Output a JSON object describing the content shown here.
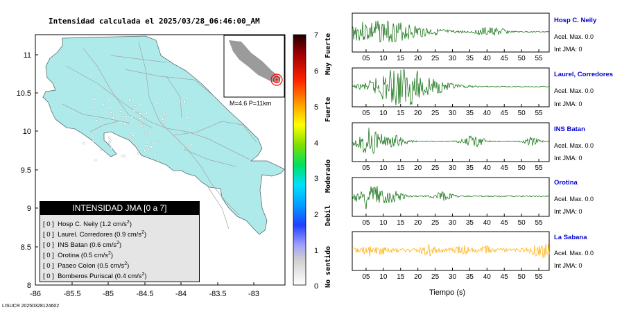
{
  "header": {
    "title": "Intensidad calculada el 2025/03/28_06:46:00_AM"
  },
  "footer": {
    "id": "LISUCR 20250328124602"
  },
  "map": {
    "inset_label": "M=4.6 P=11km",
    "yaxis_ticks": [
      "11",
      "10.5",
      "10",
      "9.5",
      "9",
      "8.5",
      "8"
    ],
    "xaxis_ticks": [
      "-86",
      "-85.5",
      "-85",
      "-84.5",
      "-84",
      "-83.5",
      "-83"
    ],
    "land_color": "#aeeaea"
  },
  "legend": {
    "title": "INTENSIDAD JMA [0 a 7]",
    "rows": [
      {
        "bracket": "[ 0 ]",
        "text": "Hosp C. Neily (1.2 cm/s",
        "unit_sup": "2",
        "close": ")"
      },
      {
        "bracket": "[ 0 ]",
        "text": "Laurel. Corredores (0.9 cm/s",
        "unit_sup": "2",
        "close": ")"
      },
      {
        "bracket": "[ 0 ]",
        "text": "INS Batan (0.6 cm/s",
        "unit_sup": "2",
        "close": ")"
      },
      {
        "bracket": "[ 0 ]",
        "text": "Orotina (0.5 cm/s",
        "unit_sup": "2",
        "close": ")"
      },
      {
        "bracket": "[ 0 ]",
        "text": "Paseo Colon (0.5 cm/s",
        "unit_sup": "2",
        "close": ")"
      },
      {
        "bracket": "[ 0 ]",
        "text": "Bomberos Puriscal (0.4 cm/s",
        "unit_sup": "2",
        "close": ")"
      }
    ]
  },
  "colorbar": {
    "ticks": [
      "7",
      "6",
      "5",
      "4",
      "3",
      "2",
      "1",
      "0"
    ],
    "labels": [
      "Muy Fuerte",
      "Fuerte",
      "Moderado",
      "Debil",
      "No sentido"
    ]
  },
  "stations": [
    {
      "name": "Hosp C. Neily",
      "acel": "Acel. Max. 0.0",
      "int": "Int JMA: 0",
      "color": "#006600"
    },
    {
      "name": "Laurel, Corredores",
      "acel": "Acel. Max. 0.0",
      "int": "Int JMA: 0",
      "color": "#006600"
    },
    {
      "name": "INS Batan",
      "acel": "Acel. Max. 0.0",
      "int": "Int JMA: 0",
      "color": "#006600"
    },
    {
      "name": "Orotina",
      "acel": "Acel. Max. 0.0",
      "int": "Int JMA: 0",
      "color": "#006600"
    },
    {
      "name": "La Sabana",
      "acel": "Acel. Max. 0.0",
      "int": "Int JMA: 0",
      "color": "#ffaa00"
    }
  ],
  "chart_data": [
    {
      "type": "map",
      "title": "Intensidad calculada el 2025/03/28_06:46:00_AM",
      "xlim": [
        -86,
        -82.5
      ],
      "ylim": [
        8,
        11.3
      ],
      "xticks": [
        -86,
        -85.5,
        -85,
        -84.5,
        -84,
        -83.5,
        -83
      ],
      "yticks": [
        8,
        8.5,
        9,
        9.5,
        10,
        10.5,
        11
      ],
      "colorbar": {
        "range": [
          0,
          7
        ],
        "ticks": [
          0,
          1,
          2,
          3,
          4,
          5,
          6,
          7
        ]
      },
      "epicenter_inset": {
        "magnitude": 4.6,
        "depth_km": 11
      }
    },
    {
      "type": "line",
      "xlabel": "Tiempo (s)",
      "xticks": [
        "05",
        "10",
        "15",
        "20",
        "25",
        "30",
        "35",
        "40",
        "45",
        "50",
        "55"
      ],
      "series": [
        {
          "name": "Hosp C. Neily",
          "acel_max": 0.0,
          "int_jma": 0
        },
        {
          "name": "Laurel, Corredores",
          "acel_max": 0.0,
          "int_jma": 0
        },
        {
          "name": "INS Batan",
          "acel_max": 0.0,
          "int_jma": 0
        },
        {
          "name": "Orotina",
          "acel_max": 0.0,
          "int_jma": 0
        },
        {
          "name": "La Sabana",
          "acel_max": 0.0,
          "int_jma": 0
        }
      ]
    }
  ],
  "waveform_axis": {
    "ticks": [
      "05",
      "10",
      "15",
      "20",
      "25",
      "30",
      "35",
      "40",
      "45",
      "50",
      "55"
    ],
    "xlabel": "Tiempo (s)"
  }
}
